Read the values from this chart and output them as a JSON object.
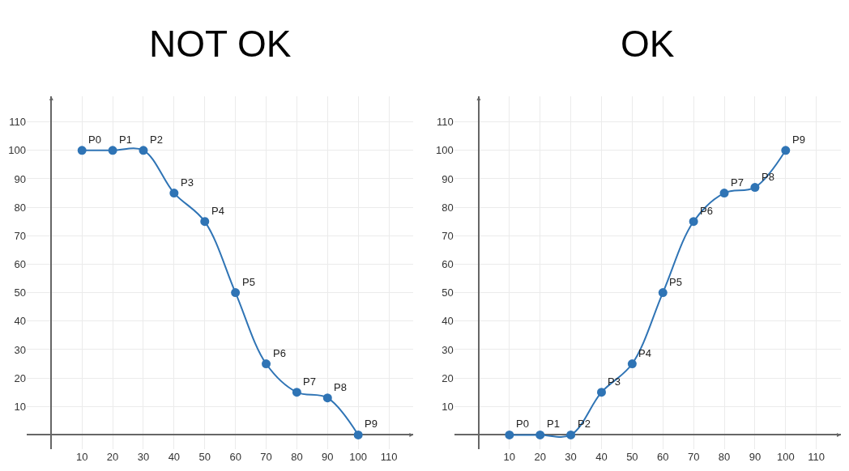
{
  "chart_data": [
    {
      "type": "line",
      "title": "NOT OK",
      "x": [
        10,
        20,
        30,
        40,
        50,
        60,
        70,
        80,
        90,
        100
      ],
      "series": [
        {
          "color": "#2f74b5",
          "values": [
            100,
            100,
            100,
            85,
            75,
            50,
            25,
            15,
            13,
            0
          ]
        }
      ],
      "annotations": [
        {
          "text": "P0",
          "x": 10,
          "y": 100
        },
        {
          "text": "P1",
          "x": 20,
          "y": 100
        },
        {
          "text": "P2",
          "x": 30,
          "y": 100
        },
        {
          "text": "P3",
          "x": 40,
          "y": 85
        },
        {
          "text": "P4",
          "x": 50,
          "y": 75
        },
        {
          "text": "P5",
          "x": 60,
          "y": 50
        },
        {
          "text": "P6",
          "x": 70,
          "y": 25
        },
        {
          "text": "P7",
          "x": 80,
          "y": 15
        },
        {
          "text": "P8",
          "x": 90,
          "y": 13
        },
        {
          "text": "P9",
          "x": 100,
          "y": 0
        }
      ],
      "xlim": [
        -8,
        118
      ],
      "ylim": [
        -5,
        119
      ],
      "xticks": [
        10,
        20,
        30,
        40,
        50,
        60,
        70,
        80,
        90,
        100,
        110
      ],
      "yticks": [
        10,
        20,
        30,
        40,
        50,
        60,
        70,
        80,
        90,
        100,
        110
      ],
      "grid": true,
      "marker": "circle",
      "line_style": "solid"
    },
    {
      "type": "line",
      "title": "OK",
      "x": [
        10,
        20,
        30,
        40,
        50,
        60,
        70,
        80,
        90,
        100
      ],
      "series": [
        {
          "color": "#2f74b5",
          "values": [
            0,
            0,
            0,
            15,
            25,
            50,
            75,
            85,
            87,
            100
          ]
        }
      ],
      "annotations": [
        {
          "text": "P0",
          "x": 10,
          "y": 0
        },
        {
          "text": "P1",
          "x": 20,
          "y": 0
        },
        {
          "text": "P2",
          "x": 30,
          "y": 0
        },
        {
          "text": "P3",
          "x": 40,
          "y": 15
        },
        {
          "text": "P4",
          "x": 50,
          "y": 25
        },
        {
          "text": "P5",
          "x": 60,
          "y": 50
        },
        {
          "text": "P6",
          "x": 70,
          "y": 75
        },
        {
          "text": "P7",
          "x": 80,
          "y": 85
        },
        {
          "text": "P8",
          "x": 90,
          "y": 87
        },
        {
          "text": "P9",
          "x": 100,
          "y": 100
        }
      ],
      "xlim": [
        -8,
        118
      ],
      "ylim": [
        -5,
        119
      ],
      "xticks": [
        10,
        20,
        30,
        40,
        50,
        60,
        70,
        80,
        90,
        100,
        110
      ],
      "yticks": [
        10,
        20,
        30,
        40,
        50,
        60,
        70,
        80,
        90,
        100,
        110
      ],
      "grid": true,
      "marker": "circle",
      "line_style": "solid"
    }
  ]
}
